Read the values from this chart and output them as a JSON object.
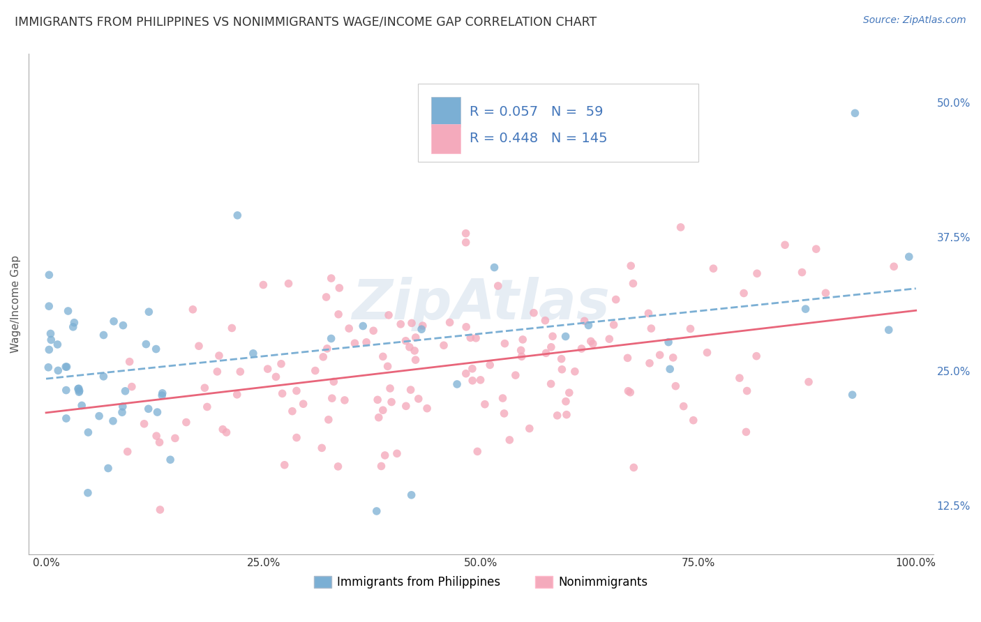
{
  "title": "IMMIGRANTS FROM PHILIPPINES VS NONIMMIGRANTS WAGE/INCOME GAP CORRELATION CHART",
  "source": "Source: ZipAtlas.com",
  "ylabel": "Wage/Income Gap",
  "xlim": [
    -0.02,
    1.02
  ],
  "ylim": [
    0.08,
    0.545
  ],
  "xticks": [
    0.0,
    0.25,
    0.5,
    0.75,
    1.0
  ],
  "xtick_labels": [
    "0.0%",
    "25.0%",
    "50.0%",
    "75.0%",
    "100.0%"
  ],
  "yticks": [
    0.125,
    0.25,
    0.375,
    0.5
  ],
  "ytick_labels": [
    "12.5%",
    "25.0%",
    "37.5%",
    "50.0%"
  ],
  "series1_color": "#7BAFD4",
  "series2_color": "#F4AABC",
  "series1_label": "Immigrants from Philippines",
  "series2_label": "Nonimmigrants",
  "series1_R": "0.057",
  "series1_N": "59",
  "series2_R": "0.448",
  "series2_N": "145",
  "watermark": "ZipAtlas",
  "background_color": "#ffffff",
  "grid_color": "#cccccc",
  "title_color": "#333333",
  "axis_color": "#4477bb",
  "legend_color": "#4477bb",
  "title_fontsize": 12.5,
  "tick_fontsize": 11
}
